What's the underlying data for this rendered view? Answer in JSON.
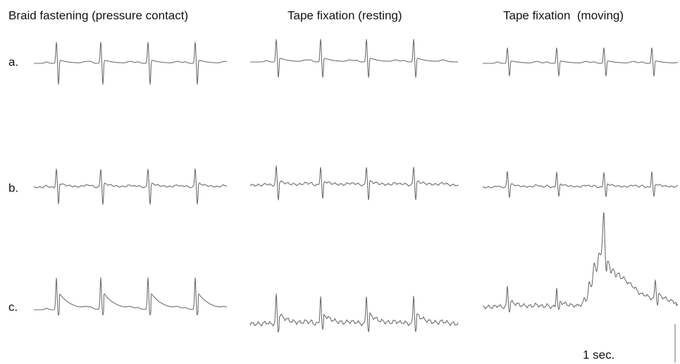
{
  "column_titles": [
    "Braid fastening (pressure contact)",
    "Tape fixation (resting)",
    "Tape fixation  (moving)"
  ],
  "row_labels": [
    "a.",
    "b.",
    "c."
  ],
  "scale_label": "1 sec."
}
